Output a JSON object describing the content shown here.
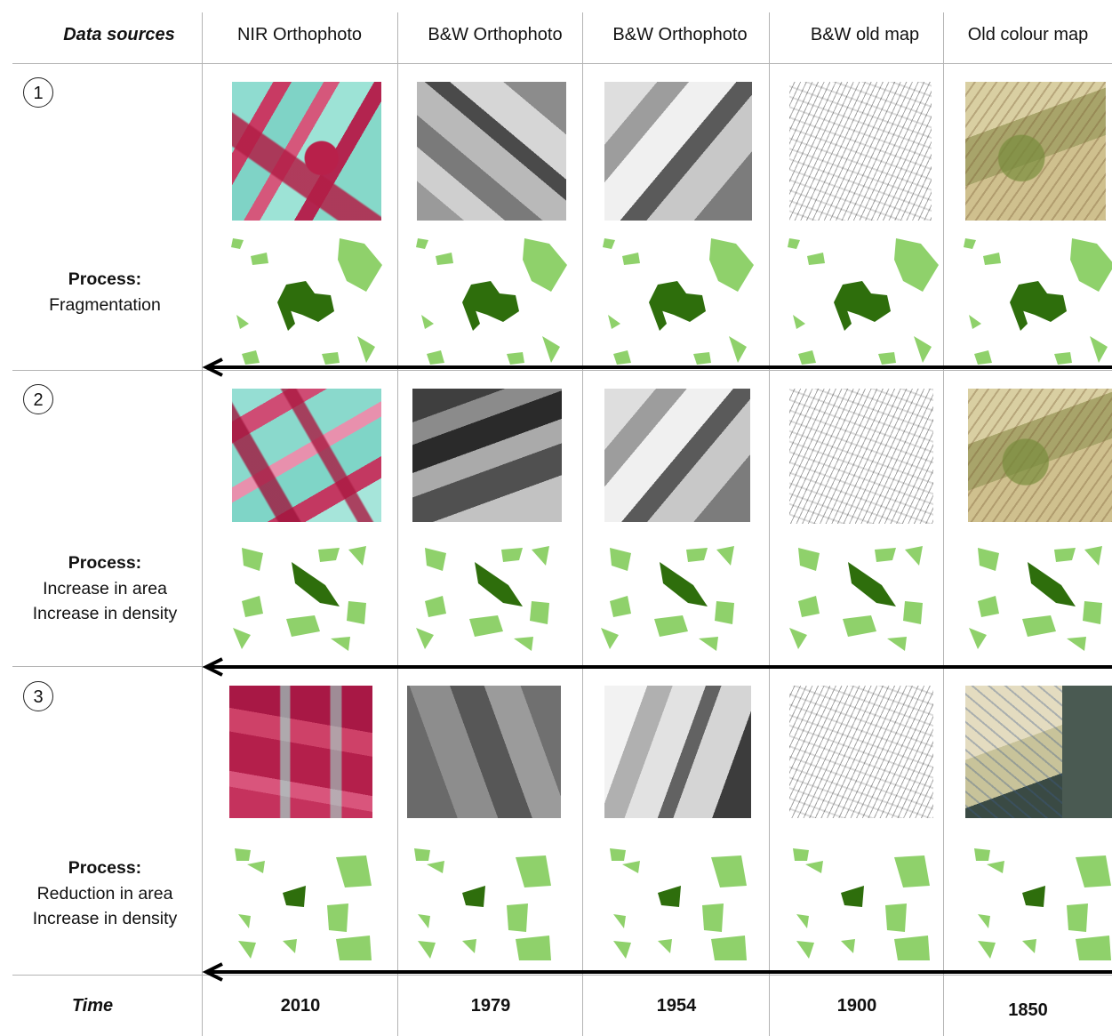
{
  "header": {
    "first_col": "Data sources",
    "sources": [
      "NIR Orthophoto",
      "B&W Orthophoto",
      "B&W Orthophoto",
      "B&W old map",
      "Old colour map"
    ]
  },
  "rows": [
    {
      "number": "1",
      "process_title": "Process:",
      "process_lines": [
        "Fragmentation"
      ]
    },
    {
      "number": "2",
      "process_title": "Process:",
      "process_lines": [
        "Increase in area",
        "Increase in density"
      ]
    },
    {
      "number": "3",
      "process_title": "Process:",
      "process_lines": [
        "Reduction in area",
        "Increase in density"
      ]
    }
  ],
  "footer": {
    "time_label": "Time",
    "years": [
      "2010",
      "1979",
      "1954",
      "1900",
      "1850"
    ]
  },
  "colors": {
    "forest_dark": "#2e6e0c",
    "forest_light": "#8fd16b",
    "grid": "#b4b4b4",
    "arrow": "#000000"
  }
}
